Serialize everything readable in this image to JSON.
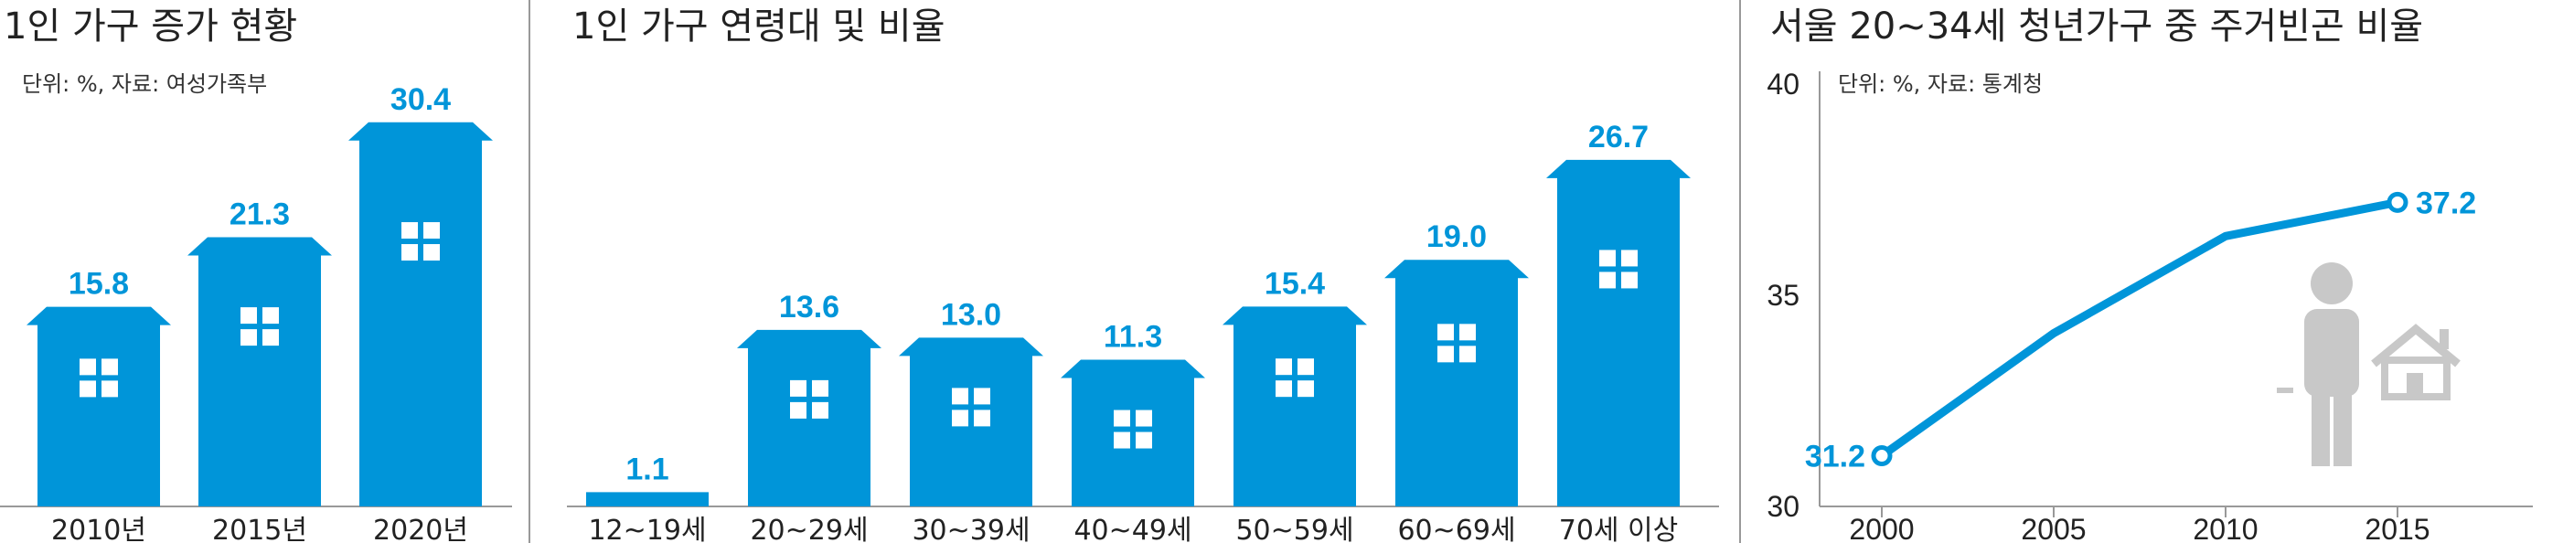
{
  "chart_data": [
    {
      "type": "bar",
      "title": "1인 가구 증가 현황",
      "subtitle": "단위: %, 자료: 여성가족부",
      "categories": [
        "2010년",
        "2015년",
        "2020년"
      ],
      "values": [
        15.8,
        21.3,
        30.4
      ],
      "value_labels": [
        "15.8",
        "21.3",
        "30.4"
      ],
      "ylim": [
        0,
        34
      ],
      "bar_color": "#0095d9"
    },
    {
      "type": "bar",
      "title": "1인 가구 연령대 및 비율",
      "categories": [
        "12~19세",
        "20~29세",
        "30~39세",
        "40~49세",
        "50~59세",
        "60~69세",
        "70세 이상"
      ],
      "values": [
        1.1,
        13.6,
        13.0,
        11.3,
        15.4,
        19.0,
        26.7
      ],
      "value_labels": [
        "1.1",
        "13.6",
        "13.0",
        "11.3",
        "15.4",
        "19.0",
        "26.7"
      ],
      "ylim": [
        0,
        30
      ],
      "bar_color": "#0095d9"
    },
    {
      "type": "line",
      "title": "서울 20~34세 청년가구 중 주거빈곤 비율",
      "subtitle": "단위: %, 자료: 통계청",
      "x": [
        "2000",
        "2005",
        "2010",
        "2015"
      ],
      "y": [
        31.2,
        34.1,
        36.4,
        37.2
      ],
      "point_labels": [
        "31.2",
        "",
        "",
        "37.2"
      ],
      "yticks": [
        "30",
        "35",
        "40"
      ],
      "ylim": [
        30,
        40
      ],
      "line_color": "#0095d9"
    }
  ],
  "colors": {
    "accent": "#0095d9",
    "icon_gray": "#c8c8c8",
    "axis": "#999999"
  }
}
